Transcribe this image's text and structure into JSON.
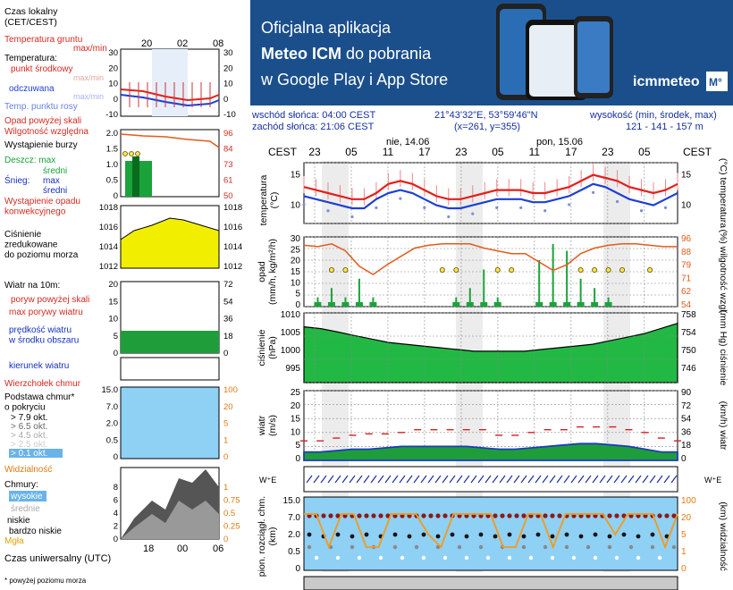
{
  "legend": {
    "time_local": "Czas lokalny\n(CET/CEST)",
    "time_ticks_top": [
      "20",
      "02",
      "08"
    ],
    "time_ticks_bottom": [
      "18",
      "00",
      "06"
    ],
    "time_utc": "Czas uniwersalny (UTC)",
    "footnote": "* powyżej poziomu morza",
    "temp": {
      "ground": "Temperatura gruntu",
      "ground_sub": "max/min",
      "title": "Temperatura:",
      "mid": "punkt środkowy",
      "minmax": "max/min",
      "feel": "odczuwana",
      "feel_minmax": "max/min",
      "dew": "Temp. punktu rosy",
      "ticks": [
        "30",
        "20",
        "10",
        "0",
        "-10"
      ]
    },
    "precip": {
      "opad": "Opad powyżej skali",
      "humidity": "Wilgotność względna",
      "storm": "Wystąpienie burzy",
      "rain": "Deszcz: max",
      "rain_mid": "średni",
      "snow": "Śnieg:",
      "snow_max": "max",
      "snow_mid": "średni",
      "occurrence": "Wystąpienie opadu\nkonwekcyjnego",
      "ticks_l": [
        "2.0",
        "1.5",
        "1.0",
        "0.5",
        "0"
      ],
      "ticks_r": [
        "96",
        "84",
        "73",
        "61",
        "50"
      ]
    },
    "pressure": {
      "title": "Ciśnienie\nzredukowane\ndo poziomu morza",
      "ticks": [
        "1018",
        "1016",
        "1014",
        "1012"
      ]
    },
    "wind": {
      "title": "Wiatr na 10m:",
      "gust_over": "poryw powyżej skali",
      "gust_max": "max porywy wiatru",
      "speed": "prędkość wiatru\nw środku obszaru",
      "ticks_l": [
        "20",
        "15",
        "10",
        "5",
        "0"
      ],
      "ticks_r": [
        "72",
        "54",
        "36",
        "18",
        "0"
      ],
      "direction": "kierunek wiatru"
    },
    "clouds": {
      "top": "Wierzchołek chmur",
      "base": "Podstawa chmur*\no pokryciu",
      "okt": [
        "> 7.9 okt.",
        "> 6.5 okt.",
        "> 4.5 okt.",
        "> 2.5 okt.",
        "> 0.1 okt."
      ],
      "vis": "Widzialność",
      "ticks_l": [
        "15.0",
        "7.0",
        "2.0",
        "0.5",
        "0"
      ],
      "ticks_r": [
        "100",
        "20",
        "5",
        "1",
        "0"
      ]
    },
    "cover": {
      "title": "Chmury:",
      "high": "wysokie",
      "mid": "średnie",
      "low": "niskie",
      "very_low": "bardzo niskie",
      "fog": "Mgła",
      "ticks_l": [
        "8",
        "6",
        "4",
        "2",
        "0"
      ],
      "ticks_r": [
        "1",
        "0.75",
        "0.5",
        "0.25",
        "0"
      ]
    }
  },
  "banner": {
    "line1": "Oficjalna aplikacja",
    "line2_bold": "Meteo ICM",
    "line2_rest": " do pobrania",
    "line3": "w Google Play i App Store",
    "brand": "icmmeteo",
    "brand_badge": "M°",
    "bg_color": "#1b4f8c"
  },
  "info": {
    "sunrise": "wschód słońca: 04:00 CEST",
    "sunset": "zachód słońca: 21:06 CEST",
    "coords": "21°43'32\"E, 53°59'46\"N",
    "grid": "(x=261,  y=355)",
    "alt_label": "wysokość (min, środek, max)",
    "alt_values": "121 - 141 - 157 m"
  },
  "axis": {
    "tz": "CEST",
    "days": [
      "nie, 14.06",
      "pon, 15.06"
    ],
    "hours": [
      "23",
      "05",
      "11",
      "17",
      "23",
      "05",
      "11",
      "17",
      "23",
      "05"
    ]
  },
  "panels": {
    "temp": {
      "left": "temperatura\n(°C)",
      "right": "(°C)  temperatura",
      "ticks": [
        "15",
        "10"
      ]
    },
    "precip": {
      "left": "opad\n(mm/h, kg/m²/h)",
      "right": "(%)  wilgotność wzgl.",
      "ticks_l": [
        "30",
        "25",
        "20",
        "15",
        "10",
        "5",
        "0"
      ],
      "ticks_r": [
        "96",
        "88",
        "79",
        "71",
        "62",
        "54"
      ]
    },
    "pressure": {
      "left": "ciśnienie\n(hPa)",
      "right": "(mm Hg)  ciśnienie",
      "ticks_l": [
        "1010",
        "1005",
        "1000",
        "995"
      ],
      "ticks_r": [
        "758",
        "754",
        "750",
        "746"
      ]
    },
    "wind": {
      "left": "wiatr\n(m/s)",
      "right": "(km/h)  wiatr",
      "ticks_l": [
        "25",
        "20",
        "15",
        "10",
        "5",
        "0"
      ],
      "ticks_r": [
        "90",
        "72",
        "54",
        "36",
        "18",
        "0"
      ]
    },
    "clouds": {
      "left": "pion. rozciągł. chm.\n(km)",
      "right": "(km)  widzialność",
      "ticks_l": [
        "15.0",
        "7.0",
        "2.0",
        "0.5",
        "0"
      ],
      "ticks_r": [
        "100",
        "20",
        "5",
        "1",
        "0"
      ]
    }
  },
  "colors": {
    "temp": "#e3201b",
    "feel": "#1c3fd6",
    "dew": "#7a8de0",
    "humidity": "#e55a1c",
    "rain": "#1aa33a",
    "snow": "#1530c0",
    "pressure_fill_mini": "#f2ee00",
    "pressure_fill": "#22b844",
    "wind_fill": "#1f9d3a",
    "wind_line": "#1a3bc0",
    "gust": "#d52020",
    "cloud_bg": "#8fd0f5",
    "visibility": "#f39a1a",
    "night": "#dcdcdc"
  },
  "chart_data": [
    {
      "type": "line",
      "title": "temperatura",
      "ylabel": "(°C)",
      "ylim": [
        7,
        17
      ],
      "series": [
        {
          "name": "temperatura",
          "values": [
            13,
            12.5,
            12,
            11.5,
            11,
            11,
            12,
            13.5,
            14,
            13.5,
            12.5,
            11.5,
            11,
            11,
            11.5,
            12,
            12.5,
            12.5,
            12.5,
            12,
            12,
            12.5,
            13,
            14,
            15,
            14.5,
            14,
            13,
            12.5,
            12,
            12.5,
            13.5
          ]
        },
        {
          "name": "odczuwana",
          "values": [
            11.5,
            11,
            10.5,
            10,
            9.5,
            9.5,
            11,
            12,
            12.5,
            12,
            11,
            10,
            9.5,
            9.5,
            10,
            10.5,
            11,
            11,
            11,
            10.5,
            10.5,
            11,
            11.5,
            12.5,
            13.5,
            13,
            12,
            11,
            10.5,
            10,
            11,
            12
          ]
        }
      ]
    },
    {
      "type": "bar",
      "title": "opad",
      "ylabel": "(mm/h, kg/m²/h)",
      "ylim": [
        0,
        30
      ],
      "series": [
        {
          "name": "wilgotność wzgl.",
          "values": [
            94,
            93,
            95,
            90,
            79,
            73,
            80,
            86,
            92,
            94,
            95,
            95,
            95,
            92,
            90,
            88,
            88,
            82,
            76,
            80,
            88,
            92,
            94,
            95,
            95,
            94,
            93,
            93
          ]
        },
        {
          "name": "opad",
          "values": [
            0,
            1,
            2,
            1,
            3,
            1,
            0,
            0,
            0,
            0,
            0,
            1,
            2,
            4,
            1,
            0,
            0,
            5,
            9,
            6,
            3,
            2,
            1,
            0,
            0,
            0,
            0,
            0
          ]
        }
      ]
    },
    {
      "type": "area",
      "title": "ciśnienie",
      "ylabel": "(hPa)",
      "ylim": [
        990,
        1010
      ],
      "values": [
        1006,
        1005.5,
        1004.5,
        1003.5,
        1002.5,
        1001.5,
        1001,
        1000.5,
        1000,
        999.5,
        999,
        999,
        999,
        999,
        999.5,
        1000,
        1000.5,
        1001,
        1002,
        1003,
        1004,
        1005.5,
        1007
      ]
    },
    {
      "type": "area",
      "title": "wiatr",
      "ylabel": "(m/s)",
      "ylim": [
        0,
        25
      ],
      "series": [
        {
          "name": "prędkość wiatru",
          "values": [
            3,
            3,
            3.5,
            4,
            4,
            4.5,
            5,
            5,
            5,
            5,
            5,
            4.5,
            4,
            4,
            4.5,
            5,
            5.5,
            6,
            6,
            5.5,
            5,
            4,
            3,
            3
          ]
        },
        {
          "name": "max porywy wiatru",
          "values": [
            7,
            7,
            8,
            9,
            9.5,
            9.5,
            10,
            11,
            11,
            11,
            11,
            11,
            9,
            9,
            10,
            11,
            11,
            12,
            12,
            12,
            11,
            10,
            8,
            7
          ]
        }
      ]
    }
  ]
}
